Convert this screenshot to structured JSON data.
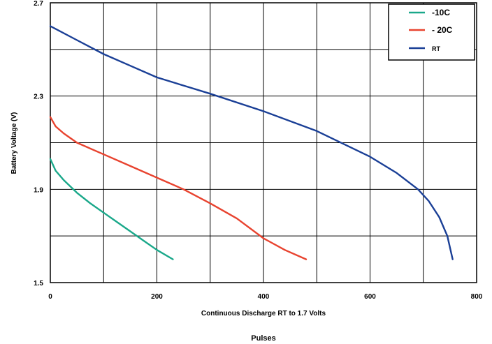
{
  "chart_data": {
    "type": "line",
    "title": "",
    "xlabel": "Continuous Discharge RT to 1.7 Volts",
    "xlabel2": "Pulses",
    "ylabel": "Battery Voltage (V)",
    "xlim": [
      0,
      800
    ],
    "ylim": [
      1.5,
      2.7
    ],
    "x_ticks": [
      "0",
      "200",
      "400",
      "600",
      "800"
    ],
    "y_ticks": [
      "1.5",
      "1.9",
      "2.3",
      "2.7"
    ],
    "grid": true,
    "legend_position": "top-right",
    "series": [
      {
        "name": "-10C",
        "color": "#1aa88a",
        "points": [
          [
            0,
            2.03
          ],
          [
            10,
            1.98
          ],
          [
            25,
            1.94
          ],
          [
            50,
            1.885
          ],
          [
            75,
            1.84
          ],
          [
            100,
            1.8
          ],
          [
            125,
            1.76
          ],
          [
            150,
            1.72
          ],
          [
            175,
            1.68
          ],
          [
            200,
            1.64
          ],
          [
            230,
            1.6
          ]
        ]
      },
      {
        "name": "- 20C",
        "color": "#e8432f",
        "points": [
          [
            0,
            2.21
          ],
          [
            10,
            2.17
          ],
          [
            25,
            2.14
          ],
          [
            50,
            2.1
          ],
          [
            100,
            2.05
          ],
          [
            150,
            2.0
          ],
          [
            200,
            1.95
          ],
          [
            250,
            1.9
          ],
          [
            300,
            1.84
          ],
          [
            350,
            1.775
          ],
          [
            400,
            1.69
          ],
          [
            440,
            1.64
          ],
          [
            480,
            1.6
          ]
        ]
      },
      {
        "name": "RT",
        "color": "#1a3f96",
        "points": [
          [
            0,
            2.6
          ],
          [
            50,
            2.54
          ],
          [
            100,
            2.48
          ],
          [
            150,
            2.43
          ],
          [
            200,
            2.38
          ],
          [
            300,
            2.31
          ],
          [
            400,
            2.235
          ],
          [
            500,
            2.15
          ],
          [
            600,
            2.04
          ],
          [
            650,
            1.97
          ],
          [
            690,
            1.9
          ],
          [
            710,
            1.85
          ],
          [
            730,
            1.78
          ],
          [
            745,
            1.7
          ],
          [
            755,
            1.6
          ]
        ]
      }
    ]
  }
}
